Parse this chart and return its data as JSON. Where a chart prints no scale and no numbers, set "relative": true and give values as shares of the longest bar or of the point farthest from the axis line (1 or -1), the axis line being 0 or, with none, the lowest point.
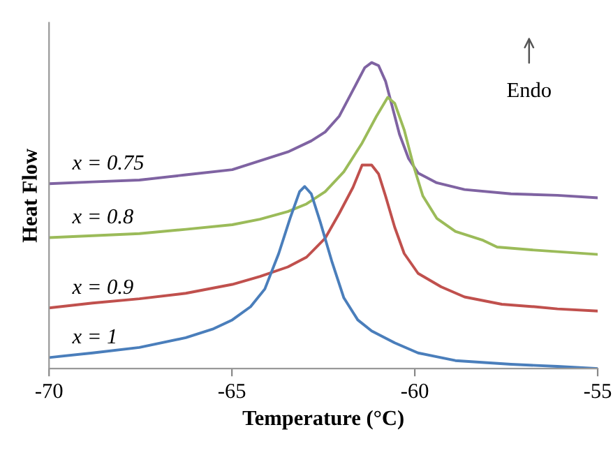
{
  "chart_data": {
    "type": "line",
    "relative": true,
    "xlabel": "Temperature (°C)",
    "ylabel": "Heat Flow",
    "xlim": [
      -70,
      -55
    ],
    "xticks": [
      -70,
      -65,
      -60,
      -55
    ],
    "tick_labels": "x",
    "grid": false,
    "legend": false,
    "marker": "none",
    "line_style": "solid",
    "annotations": [
      "Endo"
    ],
    "series": [
      {
        "name": "x = 0.75",
        "color": "#7f63a2",
        "x": [
          -70,
          -68.81,
          -67.53,
          -66.26,
          -64.99,
          -64.23,
          -63.47,
          -62.83,
          -62.45,
          -62.07,
          -61.69,
          -61.37,
          -61.18,
          -60.99,
          -60.8,
          -60.61,
          -60.42,
          -60.17,
          -59.91,
          -59.4,
          -58.64,
          -57.37,
          -56.1,
          -55
        ],
        "values": [
          0.604,
          0.61,
          0.616,
          0.633,
          0.65,
          0.679,
          0.708,
          0.744,
          0.773,
          0.824,
          0.91,
          0.983,
          1,
          0.99,
          0.939,
          0.853,
          0.766,
          0.686,
          0.639,
          0.607,
          0.585,
          0.571,
          0.566,
          0.558
        ]
      },
      {
        "name": "x = 0.8",
        "color": "#9bbb59",
        "x": [
          -70,
          -68.81,
          -67.53,
          -66.26,
          -64.99,
          -64.23,
          -63.47,
          -62.96,
          -62.45,
          -61.94,
          -61.44,
          -61.05,
          -60.74,
          -60.55,
          -60.29,
          -60.04,
          -59.78,
          -59.4,
          -58.89,
          -58.13,
          -57.75,
          -56.73,
          -55
        ],
        "values": [
          0.428,
          0.434,
          0.441,
          0.455,
          0.47,
          0.488,
          0.513,
          0.538,
          0.578,
          0.643,
          0.737,
          0.824,
          0.886,
          0.867,
          0.78,
          0.665,
          0.564,
          0.491,
          0.448,
          0.419,
          0.397,
          0.387,
          0.373
        ]
      },
      {
        "name": "x = 0.9",
        "color": "#c0504d",
        "x": [
          -70,
          -68.81,
          -67.53,
          -66.26,
          -64.99,
          -64.23,
          -63.47,
          -62.96,
          -62.45,
          -62.07,
          -61.69,
          -61.44,
          -61.18,
          -60.99,
          -60.8,
          -60.55,
          -60.29,
          -59.91,
          -59.28,
          -58.64,
          -57.62,
          -56.73,
          -56.1,
          -55
        ],
        "values": [
          0.198,
          0.214,
          0.228,
          0.246,
          0.275,
          0.301,
          0.332,
          0.364,
          0.426,
          0.506,
          0.592,
          0.665,
          0.665,
          0.636,
          0.564,
          0.462,
          0.376,
          0.311,
          0.267,
          0.234,
          0.21,
          0.202,
          0.195,
          0.188
        ]
      },
      {
        "name": "x = 1",
        "color": "#4a7ebb",
        "x": [
          -70,
          -68.81,
          -67.53,
          -66.26,
          -65.5,
          -64.99,
          -64.49,
          -64.1,
          -63.72,
          -63.41,
          -63.15,
          -63.01,
          -62.83,
          -62.58,
          -62.26,
          -61.94,
          -61.56,
          -61.18,
          -60.55,
          -59.91,
          -58.89,
          -57.37,
          -56.1,
          -55
        ],
        "values": [
          0.036,
          0.051,
          0.069,
          0.101,
          0.13,
          0.159,
          0.202,
          0.26,
          0.376,
          0.491,
          0.578,
          0.595,
          0.571,
          0.477,
          0.347,
          0.231,
          0.159,
          0.123,
          0.084,
          0.051,
          0.026,
          0.014,
          0.007,
          0
        ]
      }
    ]
  }
}
